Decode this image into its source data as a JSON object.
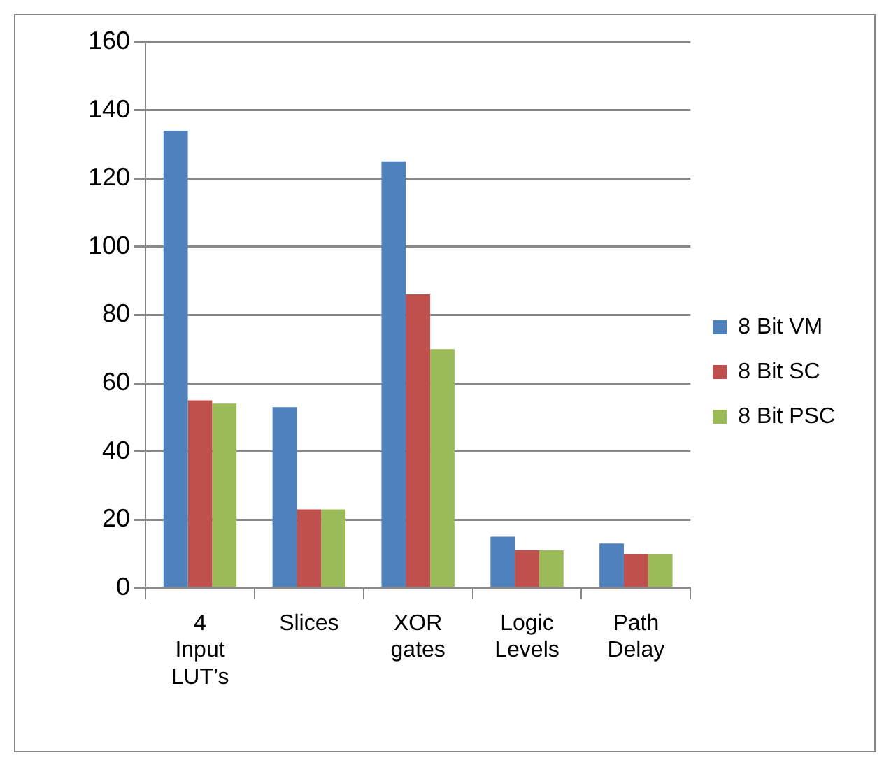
{
  "chart_data": {
    "type": "bar",
    "categories": [
      "4 Input LUT’s",
      "Slices",
      "XOR gates",
      "Logic Levels",
      "Path Delay"
    ],
    "series": [
      {
        "name": "8 Bit VM",
        "color": "#4f81bd",
        "values": [
          134,
          53,
          125,
          15,
          13
        ]
      },
      {
        "name": "8 Bit SC",
        "color": "#c0504d",
        "values": [
          55,
          23,
          86,
          11,
          10
        ]
      },
      {
        "name": "8 Bit PSC",
        "color": "#9bbb59",
        "values": [
          54,
          23,
          70,
          11,
          10
        ]
      }
    ],
    "ylim": [
      0,
      160
    ],
    "yticks": [
      0,
      20,
      40,
      60,
      80,
      100,
      120,
      140,
      160
    ],
    "grid": "y",
    "legend": "right"
  }
}
